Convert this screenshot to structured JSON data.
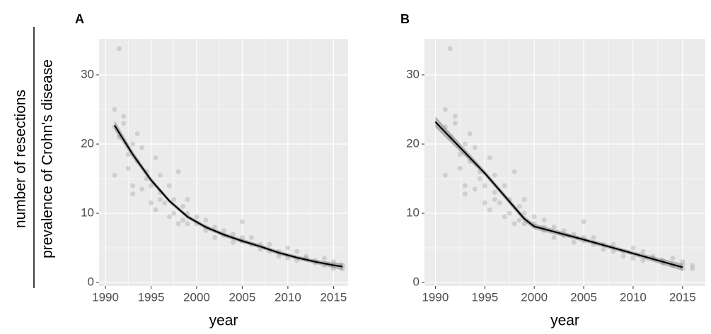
{
  "chart_data": [
    {
      "type": "scatter",
      "title": "A",
      "xlabel": "year",
      "ylabel": {
        "numerator": "number of resections",
        "denominator": "prevalence of Crohn's disease"
      },
      "xlim": [
        1989.3,
        2016.6
      ],
      "ylim": [
        -0.5,
        35.2
      ],
      "xticks": [
        1990,
        1995,
        2000,
        2005,
        2010,
        2015
      ],
      "yticks": [
        0,
        10,
        20,
        30
      ],
      "grid": true,
      "minor_grid": true,
      "points": {
        "color": "#9a9a9a",
        "x": [
          1991,
          1991,
          1991,
          1991.5,
          1991.5,
          1992,
          1992,
          1992.5,
          1992.5,
          1993,
          1993,
          1993,
          1993.5,
          1993.5,
          1994,
          1994,
          1994.5,
          1994.5,
          1995,
          1995,
          1995.5,
          1995.5,
          1996,
          1996,
          1996,
          1996.5,
          1997,
          1997,
          1997.5,
          1997.5,
          1998,
          1998,
          1998.5,
          1998.5,
          1999,
          1999,
          1999,
          2000,
          2000,
          2001,
          2001,
          2001,
          2002,
          2002,
          2003,
          2003,
          2004,
          2004,
          2005,
          2005,
          2005,
          2006,
          2006,
          2007,
          2007,
          2008,
          2008,
          2009,
          2009,
          2010,
          2010,
          2011,
          2011,
          2012,
          2012,
          2013,
          2013,
          2014,
          2014,
          2015,
          2015,
          2015,
          2016,
          2016
        ],
        "y": [
          15.5,
          25,
          22.5,
          33.8,
          21,
          23,
          24,
          18.5,
          16.5,
          20,
          14,
          12.8,
          17.5,
          21.5,
          13.5,
          19.5,
          16,
          15,
          14,
          11.5,
          10.5,
          18,
          15.5,
          13,
          12,
          11.5,
          14,
          9.5,
          10,
          12,
          16,
          8.5,
          11,
          9,
          8.5,
          10,
          12,
          8.5,
          9.5,
          7.5,
          9,
          8,
          6.5,
          8,
          6.8,
          7.5,
          5.8,
          7,
          8.8,
          6,
          6.5,
          5.5,
          6.5,
          4.8,
          5.5,
          5.5,
          4.5,
          4.5,
          3.8,
          5,
          3.5,
          4.5,
          3.2,
          3.5,
          3.8,
          3.2,
          2.8,
          3.5,
          2.5,
          2.5,
          3,
          2,
          2.5,
          2
        ]
      },
      "fit": {
        "color": "#000000",
        "x": [
          1991,
          1993,
          1995,
          1997,
          1999,
          2001,
          2003,
          2005,
          2007,
          2009,
          2011,
          2013,
          2015,
          2016
        ],
        "y": [
          22.7,
          18.5,
          14.8,
          11.8,
          9.5,
          8,
          6.9,
          6,
          5.2,
          4.3,
          3.6,
          3,
          2.5,
          2.3
        ],
        "lower": [
          22,
          18,
          14.4,
          11.5,
          9.2,
          7.7,
          6.6,
          5.7,
          4.9,
          4,
          3.3,
          2.7,
          2.1,
          1.8
        ],
        "upper": [
          23.4,
          19,
          15.2,
          12.1,
          9.8,
          8.3,
          7.2,
          6.3,
          5.5,
          4.6,
          3.9,
          3.3,
          2.9,
          2.8
        ]
      }
    },
    {
      "type": "scatter",
      "title": "B",
      "xlabel": "year",
      "xlim": [
        1988.9,
        2017.3
      ],
      "ylim": [
        -0.5,
        35.2
      ],
      "xticks": [
        1990,
        1995,
        2000,
        2005,
        2010,
        2015
      ],
      "yticks": [
        0,
        10,
        20,
        30
      ],
      "grid": true,
      "minor_grid": true,
      "points": {
        "color": "#9a9a9a",
        "x": [
          1991,
          1991,
          1991,
          1991.5,
          1991.5,
          1992,
          1992,
          1992.5,
          1992.5,
          1993,
          1993,
          1993,
          1993.5,
          1993.5,
          1994,
          1994,
          1994.5,
          1994.5,
          1995,
          1995,
          1995.5,
          1995.5,
          1996,
          1996,
          1996,
          1996.5,
          1997,
          1997,
          1997.5,
          1997.5,
          1998,
          1998,
          1998.5,
          1998.5,
          1999,
          1999,
          1999,
          2000,
          2000,
          2001,
          2001,
          2001,
          2002,
          2002,
          2003,
          2003,
          2004,
          2004,
          2005,
          2005,
          2005,
          2006,
          2006,
          2007,
          2007,
          2008,
          2008,
          2009,
          2009,
          2010,
          2010,
          2011,
          2011,
          2012,
          2012,
          2013,
          2013,
          2014,
          2014,
          2015,
          2015,
          2015,
          2016,
          2016
        ],
        "y": [
          15.5,
          25,
          22.5,
          33.8,
          21,
          23,
          24,
          18.5,
          16.5,
          20,
          14,
          12.8,
          17.5,
          21.5,
          13.5,
          19.5,
          16,
          15,
          14,
          11.5,
          10.5,
          18,
          15.5,
          13,
          12,
          11.5,
          14,
          9.5,
          10,
          12,
          16,
          8.5,
          11,
          9,
          8.5,
          10,
          12,
          8.5,
          9.5,
          7.5,
          9,
          8,
          6.5,
          8,
          6.8,
          7.5,
          5.8,
          7,
          8.8,
          6,
          6.5,
          5.5,
          6.5,
          4.8,
          5.5,
          5.5,
          4.5,
          4.5,
          3.8,
          5,
          3.5,
          4.5,
          3.2,
          3.5,
          3.8,
          3.2,
          2.8,
          3.5,
          2.5,
          2.5,
          3,
          2,
          2.5,
          2
        ]
      },
      "fit": {
        "color": "#000000",
        "x": [
          1990,
          1995,
          1999,
          2000,
          2005,
          2010,
          2015
        ],
        "y": [
          23.2,
          15.8,
          9.2,
          8.1,
          6.2,
          4.2,
          2.2
        ],
        "lower": [
          22.4,
          15.4,
          8.8,
          7.7,
          5.9,
          3.9,
          1.7
        ],
        "upper": [
          24,
          16.2,
          9.6,
          8.5,
          6.5,
          4.5,
          2.7
        ]
      }
    }
  ]
}
